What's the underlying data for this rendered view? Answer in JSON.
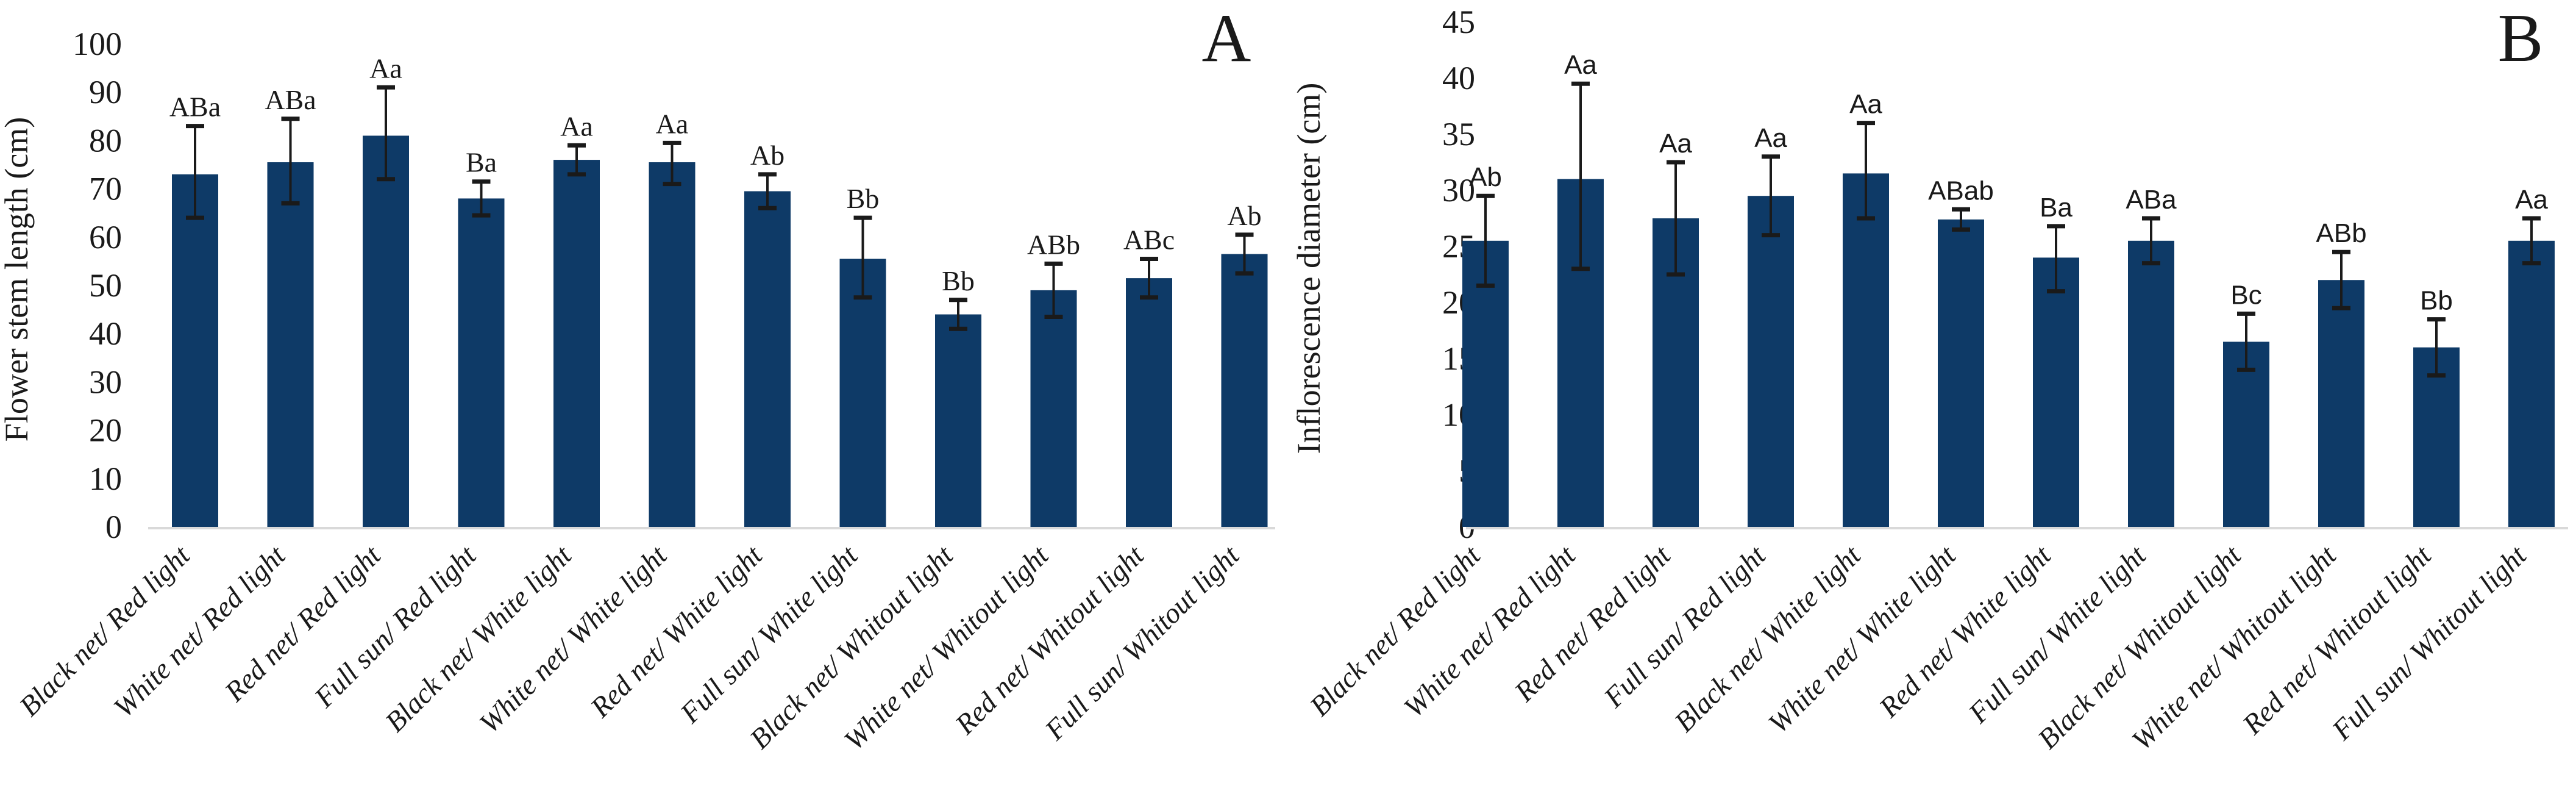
{
  "figure": {
    "background": "#ffffff",
    "bar_color": "#0e3a67",
    "baseline_color": "#d9d9d9",
    "error_bar_color": "#1a1a1a",
    "text_color": "#1a1a1a"
  },
  "chart_data": [
    {
      "type": "bar",
      "panel_label": "A",
      "title": "",
      "xlabel": "",
      "ylabel": "Flower stem length (cm)",
      "ylim": [
        0,
        100
      ],
      "ytick_step": 10,
      "yticks": [
        0,
        10,
        20,
        30,
        40,
        50,
        60,
        70,
        80,
        90,
        100
      ],
      "grid": false,
      "legend": false,
      "bar_color": "#0e3a67",
      "sig_letter_font": "serif",
      "categories": [
        "Black net/ Red light",
        "White net/ Red light",
        "Red net/ Red light",
        "Full sun/ Red light",
        "Black net/ White light",
        "White net/ White light",
        "Red net/ White light",
        "Full sun/ White light",
        "Black net/ Whitout light",
        "White net/ Whitout light",
        "Red net/ Whitout light",
        "Full sun/ Whitout light"
      ],
      "values": [
        73,
        75.5,
        81,
        68,
        76,
        75.5,
        69.5,
        55.5,
        44,
        49,
        51.5,
        56.5
      ],
      "error_high": [
        83,
        84.5,
        91,
        71.5,
        79,
        79.5,
        73,
        64,
        47,
        54.5,
        55.5,
        60.5
      ],
      "error_low": [
        64,
        67,
        72,
        64.5,
        73,
        71,
        66,
        47.5,
        41,
        43.5,
        47.5,
        52.5
      ],
      "sig_letters": [
        "ABa",
        "ABa",
        "Aa",
        "Ba",
        "Aa",
        "Aa",
        "Ab",
        "Bb",
        "Bb",
        "ABb",
        "ABc",
        "Ab"
      ]
    },
    {
      "type": "bar",
      "panel_label": "B",
      "title": "",
      "xlabel": "",
      "ylabel": "Inflorescence diameter (cm)",
      "ylim": [
        0,
        45
      ],
      "ytick_step": 5,
      "yticks": [
        0,
        5,
        10,
        15,
        20,
        25,
        30,
        35,
        40,
        45
      ],
      "grid": false,
      "legend": false,
      "bar_color": "#0e3a67",
      "sig_letter_font": "sans",
      "categories": [
        "Black net/ Red light",
        "White net/ Red light",
        "Red net/ Red light",
        "Full sun/ Red light",
        "Black net/ White light",
        "White net/ White light",
        "Red net/ White light",
        "Full sun/ White light",
        "Black net/ Whitout light",
        "White net/ Whitout light",
        "Red net/ Whitout light",
        "Full sun/ Whitout light"
      ],
      "values": [
        25.5,
        31,
        27.5,
        29.5,
        31.5,
        27.4,
        24,
        25.5,
        16.5,
        22,
        16,
        25.5
      ],
      "error_high": [
        29.5,
        39.5,
        32.5,
        33,
        36,
        28.3,
        26.8,
        27.5,
        19,
        24.5,
        18.5,
        27.5
      ],
      "error_low": [
        21.5,
        23,
        22.5,
        26,
        27.5,
        26.5,
        21,
        23.5,
        14,
        19.5,
        13.5,
        23.5
      ],
      "sig_letters": [
        "Ab",
        "Aa",
        "Aa",
        "Aa",
        "Aa",
        "ABab",
        "Ba",
        "ABa",
        "Bc",
        "ABb",
        "Bb",
        "Aa"
      ]
    }
  ]
}
